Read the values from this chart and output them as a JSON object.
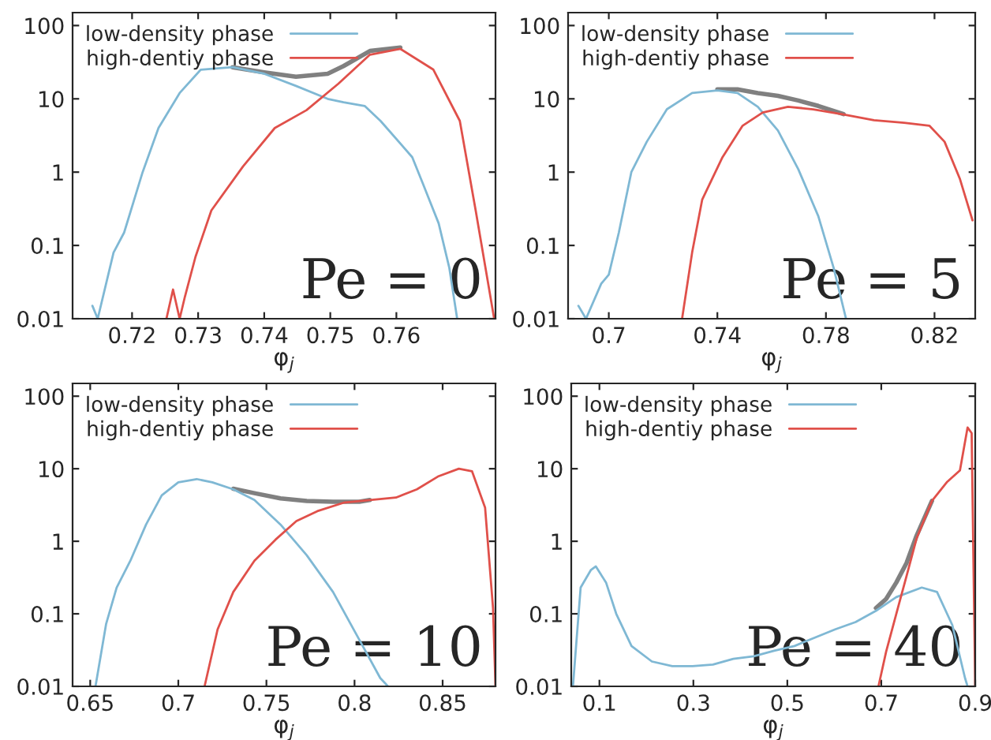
{
  "chart_data": [
    {
      "type": "line",
      "xlabel": "φ$_{j}$",
      "log": "y",
      "legend": "top left",
      "grid": false,
      "xlim": [
        0.711,
        0.775
      ],
      "xticks": [
        0.72,
        0.73,
        0.74,
        0.75,
        0.76
      ],
      "ylim": [
        0.01,
        150
      ],
      "yticks": [
        0.01,
        0.1,
        1,
        10,
        100
      ],
      "annotations": [
        "Pe = 0"
      ],
      "series": [
        {
          "color": "#808080",
          "x": [
            0.7352,
            0.74,
            0.7448,
            0.7496,
            0.752,
            0.756,
            0.7606
          ],
          "values": [
            27,
            23,
            20,
            22,
            28,
            45,
            50
          ]
        },
        {
          "name": "low-density phase",
          "color": "#7fb8d4",
          "x": [
            0.714,
            0.7148,
            0.7172,
            0.7188,
            0.7216,
            0.724,
            0.7272,
            0.7304,
            0.7352,
            0.74,
            0.7448,
            0.7496,
            0.752,
            0.7552,
            0.7576,
            0.7624,
            0.764,
            0.7664,
            0.768,
            0.7692
          ],
          "values": [
            0.015,
            0.01,
            0.08,
            0.15,
            1,
            4,
            12,
            25,
            27,
            22,
            15,
            10,
            9,
            8,
            5,
            1.6,
            0.7,
            0.2,
            0.05,
            0.01
          ]
        },
        {
          "name": "high-dentiy phase",
          "color": "#e0504a",
          "x": [
            0.7252,
            0.7262,
            0.7272,
            0.728,
            0.7296,
            0.732,
            0.7368,
            0.7416,
            0.7464,
            0.7512,
            0.756,
            0.7606,
            0.7656,
            0.7696,
            0.772,
            0.7748
          ],
          "values": [
            0.01,
            0.025,
            0.01,
            0.02,
            0.07,
            0.3,
            1.2,
            4,
            7,
            16,
            40,
            48,
            25,
            5,
            0.3,
            0.01
          ]
        }
      ]
    },
    {
      "type": "line",
      "xlabel": "φ$_{j}$",
      "log": "y",
      "legend": "top left",
      "grid": false,
      "xlim": [
        0.685,
        0.835
      ],
      "xticks": [
        0.7,
        0.74,
        0.78,
        0.82
      ],
      "ylim": [
        0.01,
        150
      ],
      "yticks": [
        0.01,
        0.1,
        1,
        10,
        100
      ],
      "annotations": [
        "Pe = 5"
      ],
      "series": [
        {
          "color": "#808080",
          "x": [
            0.74,
            0.7474,
            0.7549,
            0.7623,
            0.7698,
            0.7772,
            0.7865
          ],
          "values": [
            13.5,
            13.5,
            12,
            11,
            9.5,
            8,
            6.2
          ]
        },
        {
          "name": "low-density phase",
          "color": "#7fb8d4",
          "x": [
            0.6888,
            0.6916,
            0.6972,
            0.7,
            0.7037,
            0.7083,
            0.714,
            0.7214,
            0.7307,
            0.74,
            0.7474,
            0.7549,
            0.7623,
            0.7698,
            0.7772,
            0.7828,
            0.7874
          ],
          "values": [
            0.015,
            0.01,
            0.03,
            0.04,
            0.15,
            1,
            2.6,
            7.2,
            12,
            13,
            12,
            7.8,
            3.7,
            1.1,
            0.25,
            0.05,
            0.01
          ]
        },
        {
          "name": "high-dentiy phase",
          "color": "#e0504a",
          "x": [
            0.727,
            0.7307,
            0.7344,
            0.7419,
            0.7493,
            0.7567,
            0.766,
            0.7753,
            0.7865,
            0.7977,
            0.8088,
            0.8181,
            0.8237,
            0.8293,
            0.834
          ],
          "values": [
            0.01,
            0.08,
            0.42,
            1.6,
            4.3,
            6.5,
            7.8,
            7.2,
            6.1,
            5.1,
            4.7,
            4.3,
            2.6,
            0.82,
            0.22
          ]
        }
      ]
    },
    {
      "type": "line",
      "xlabel": "φ$_{j}$",
      "log": "y",
      "legend": "top left",
      "grid": false,
      "xlim": [
        0.64,
        0.88
      ],
      "xticks": [
        0.65,
        0.7,
        0.75,
        0.8,
        0.85
      ],
      "ylim": [
        0.01,
        150
      ],
      "yticks": [
        0.01,
        0.1,
        1,
        10,
        100
      ],
      "annotations": [
        "Pe = 10"
      ],
      "series": [
        {
          "color": "#808080",
          "x": [
            0.7312,
            0.7432,
            0.758,
            0.7729,
            0.7878,
            0.8027,
            0.8086
          ],
          "values": [
            5.3,
            4.6,
            3.9,
            3.6,
            3.5,
            3.5,
            3.7
          ]
        },
        {
          "name": "low-density phase",
          "color": "#7fb8d4",
          "x": [
            0.653,
            0.659,
            0.665,
            0.6728,
            0.6817,
            0.6906,
            0.7,
            0.7104,
            0.7193,
            0.7312,
            0.7432,
            0.758,
            0.7729,
            0.7878,
            0.8027,
            0.8146,
            0.819
          ],
          "values": [
            0.01,
            0.072,
            0.23,
            0.54,
            1.7,
            4.3,
            6.5,
            7.2,
            6.5,
            5.2,
            3.7,
            1.7,
            0.64,
            0.2,
            0.044,
            0.013,
            0.01
          ]
        },
        {
          "name": "high-dentiy phase",
          "color": "#e0504a",
          "x": [
            0.7149,
            0.7223,
            0.7312,
            0.7432,
            0.7551,
            0.767,
            0.7789,
            0.7938,
            0.8086,
            0.8235,
            0.8354,
            0.8473,
            0.8592,
            0.8667,
            0.8741,
            0.8786,
            0.88
          ],
          "values": [
            0.01,
            0.061,
            0.2,
            0.54,
            1.05,
            1.9,
            2.6,
            3.4,
            3.7,
            4,
            5.2,
            7.8,
            10,
            9.2,
            2.9,
            0.12,
            0.01
          ]
        }
      ]
    },
    {
      "type": "line",
      "xlabel": "φ$_{j}$",
      "log": "y",
      "legend": "top left",
      "grid": false,
      "xlim": [
        0.04,
        0.9
      ],
      "xticks": [
        0.1,
        0.3,
        0.5,
        0.7,
        0.9
      ],
      "ylim": [
        0.01,
        150
      ],
      "yticks": [
        0.01,
        0.1,
        1,
        10,
        100
      ],
      "annotations": [
        "Pe = 40"
      ],
      "series": [
        {
          "color": "#808080",
          "x": [
            0.6886,
            0.7103,
            0.732,
            0.7537,
            0.7753,
            0.8079
          ],
          "values": [
            0.12,
            0.16,
            0.27,
            0.5,
            1.2,
            3.6
          ]
        },
        {
          "name": "low-density phase",
          "color": "#7fb8d4",
          "x": [
            0.0436,
            0.06,
            0.0816,
            0.0924,
            0.1141,
            0.1358,
            0.1683,
            0.2117,
            0.255,
            0.2984,
            0.3417,
            0.385,
            0.4285,
            0.4718,
            0.5152,
            0.5585,
            0.6019,
            0.6453,
            0.6886,
            0.732,
            0.7862,
            0.8187,
            0.8512,
            0.8783,
            0.8837
          ],
          "values": [
            0.01,
            0.23,
            0.4,
            0.45,
            0.27,
            0.1,
            0.036,
            0.022,
            0.019,
            0.019,
            0.02,
            0.024,
            0.026,
            0.031,
            0.036,
            0.047,
            0.061,
            0.077,
            0.11,
            0.17,
            0.23,
            0.2,
            0.07,
            0.013,
            0.01
          ]
        },
        {
          "name": "high-dentiy phase",
          "color": "#e0504a",
          "x": [
            0.694,
            0.7103,
            0.732,
            0.7537,
            0.7753,
            0.8079,
            0.8404,
            0.8675,
            0.8837,
            0.8924,
            0.9
          ],
          "values": [
            0.01,
            0.03,
            0.1,
            0.33,
            1.1,
            3.6,
            6.6,
            9.5,
            37,
            31,
            0.01
          ]
        }
      ]
    }
  ]
}
